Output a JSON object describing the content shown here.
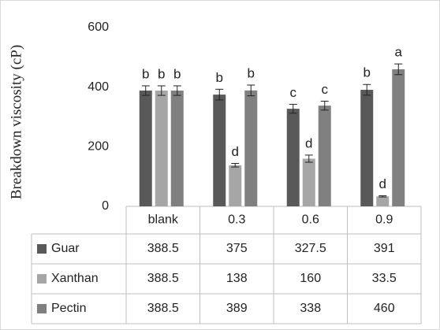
{
  "chart_data": {
    "type": "bar",
    "ylabel": "Breakdown viscosity (cP)",
    "categories": [
      "blank",
      "0.3",
      "0.6",
      "0.9"
    ],
    "series": [
      {
        "name": "Guar",
        "color": "#595959",
        "values": [
          388.5,
          375,
          327.5,
          391
        ],
        "errors": [
          16,
          18,
          15,
          18
        ],
        "letters": [
          "b",
          "b",
          "c",
          "b"
        ]
      },
      {
        "name": "Xanthan",
        "color": "#a6a6a6",
        "values": [
          388.5,
          138,
          160,
          33.5
        ],
        "errors": [
          16,
          6,
          12,
          2
        ],
        "letters": [
          "b",
          "d",
          "d",
          "d"
        ]
      },
      {
        "name": "Pectin",
        "color": "#808080",
        "values": [
          388.5,
          389,
          338,
          460
        ],
        "errors": [
          16,
          18,
          15,
          18
        ],
        "letters": [
          "b",
          "b",
          "c",
          "a"
        ]
      }
    ],
    "ylim": [
      0,
      600
    ],
    "yticks": [
      0,
      200,
      400,
      600
    ]
  }
}
